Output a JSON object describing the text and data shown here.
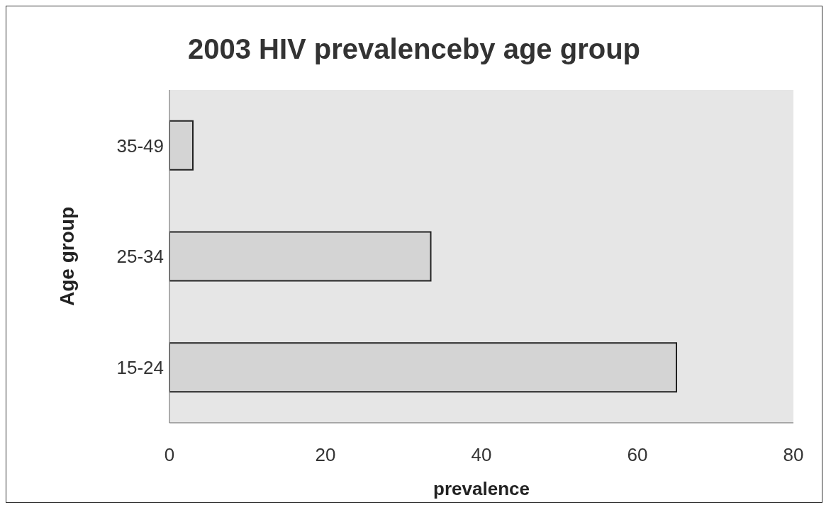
{
  "chart_data": {
    "type": "bar",
    "orientation": "horizontal",
    "title": "2003 HIV prevalenceby age group",
    "xlabel": "prevalence",
    "ylabel": "Age group",
    "categories": [
      "35-49",
      "25-34",
      "15-24"
    ],
    "values": [
      3,
      33.5,
      65
    ],
    "color": "#d4d4d4",
    "xlim": [
      0,
      80
    ],
    "xticks": [
      0,
      20,
      40,
      60,
      80
    ],
    "grid": false
  }
}
